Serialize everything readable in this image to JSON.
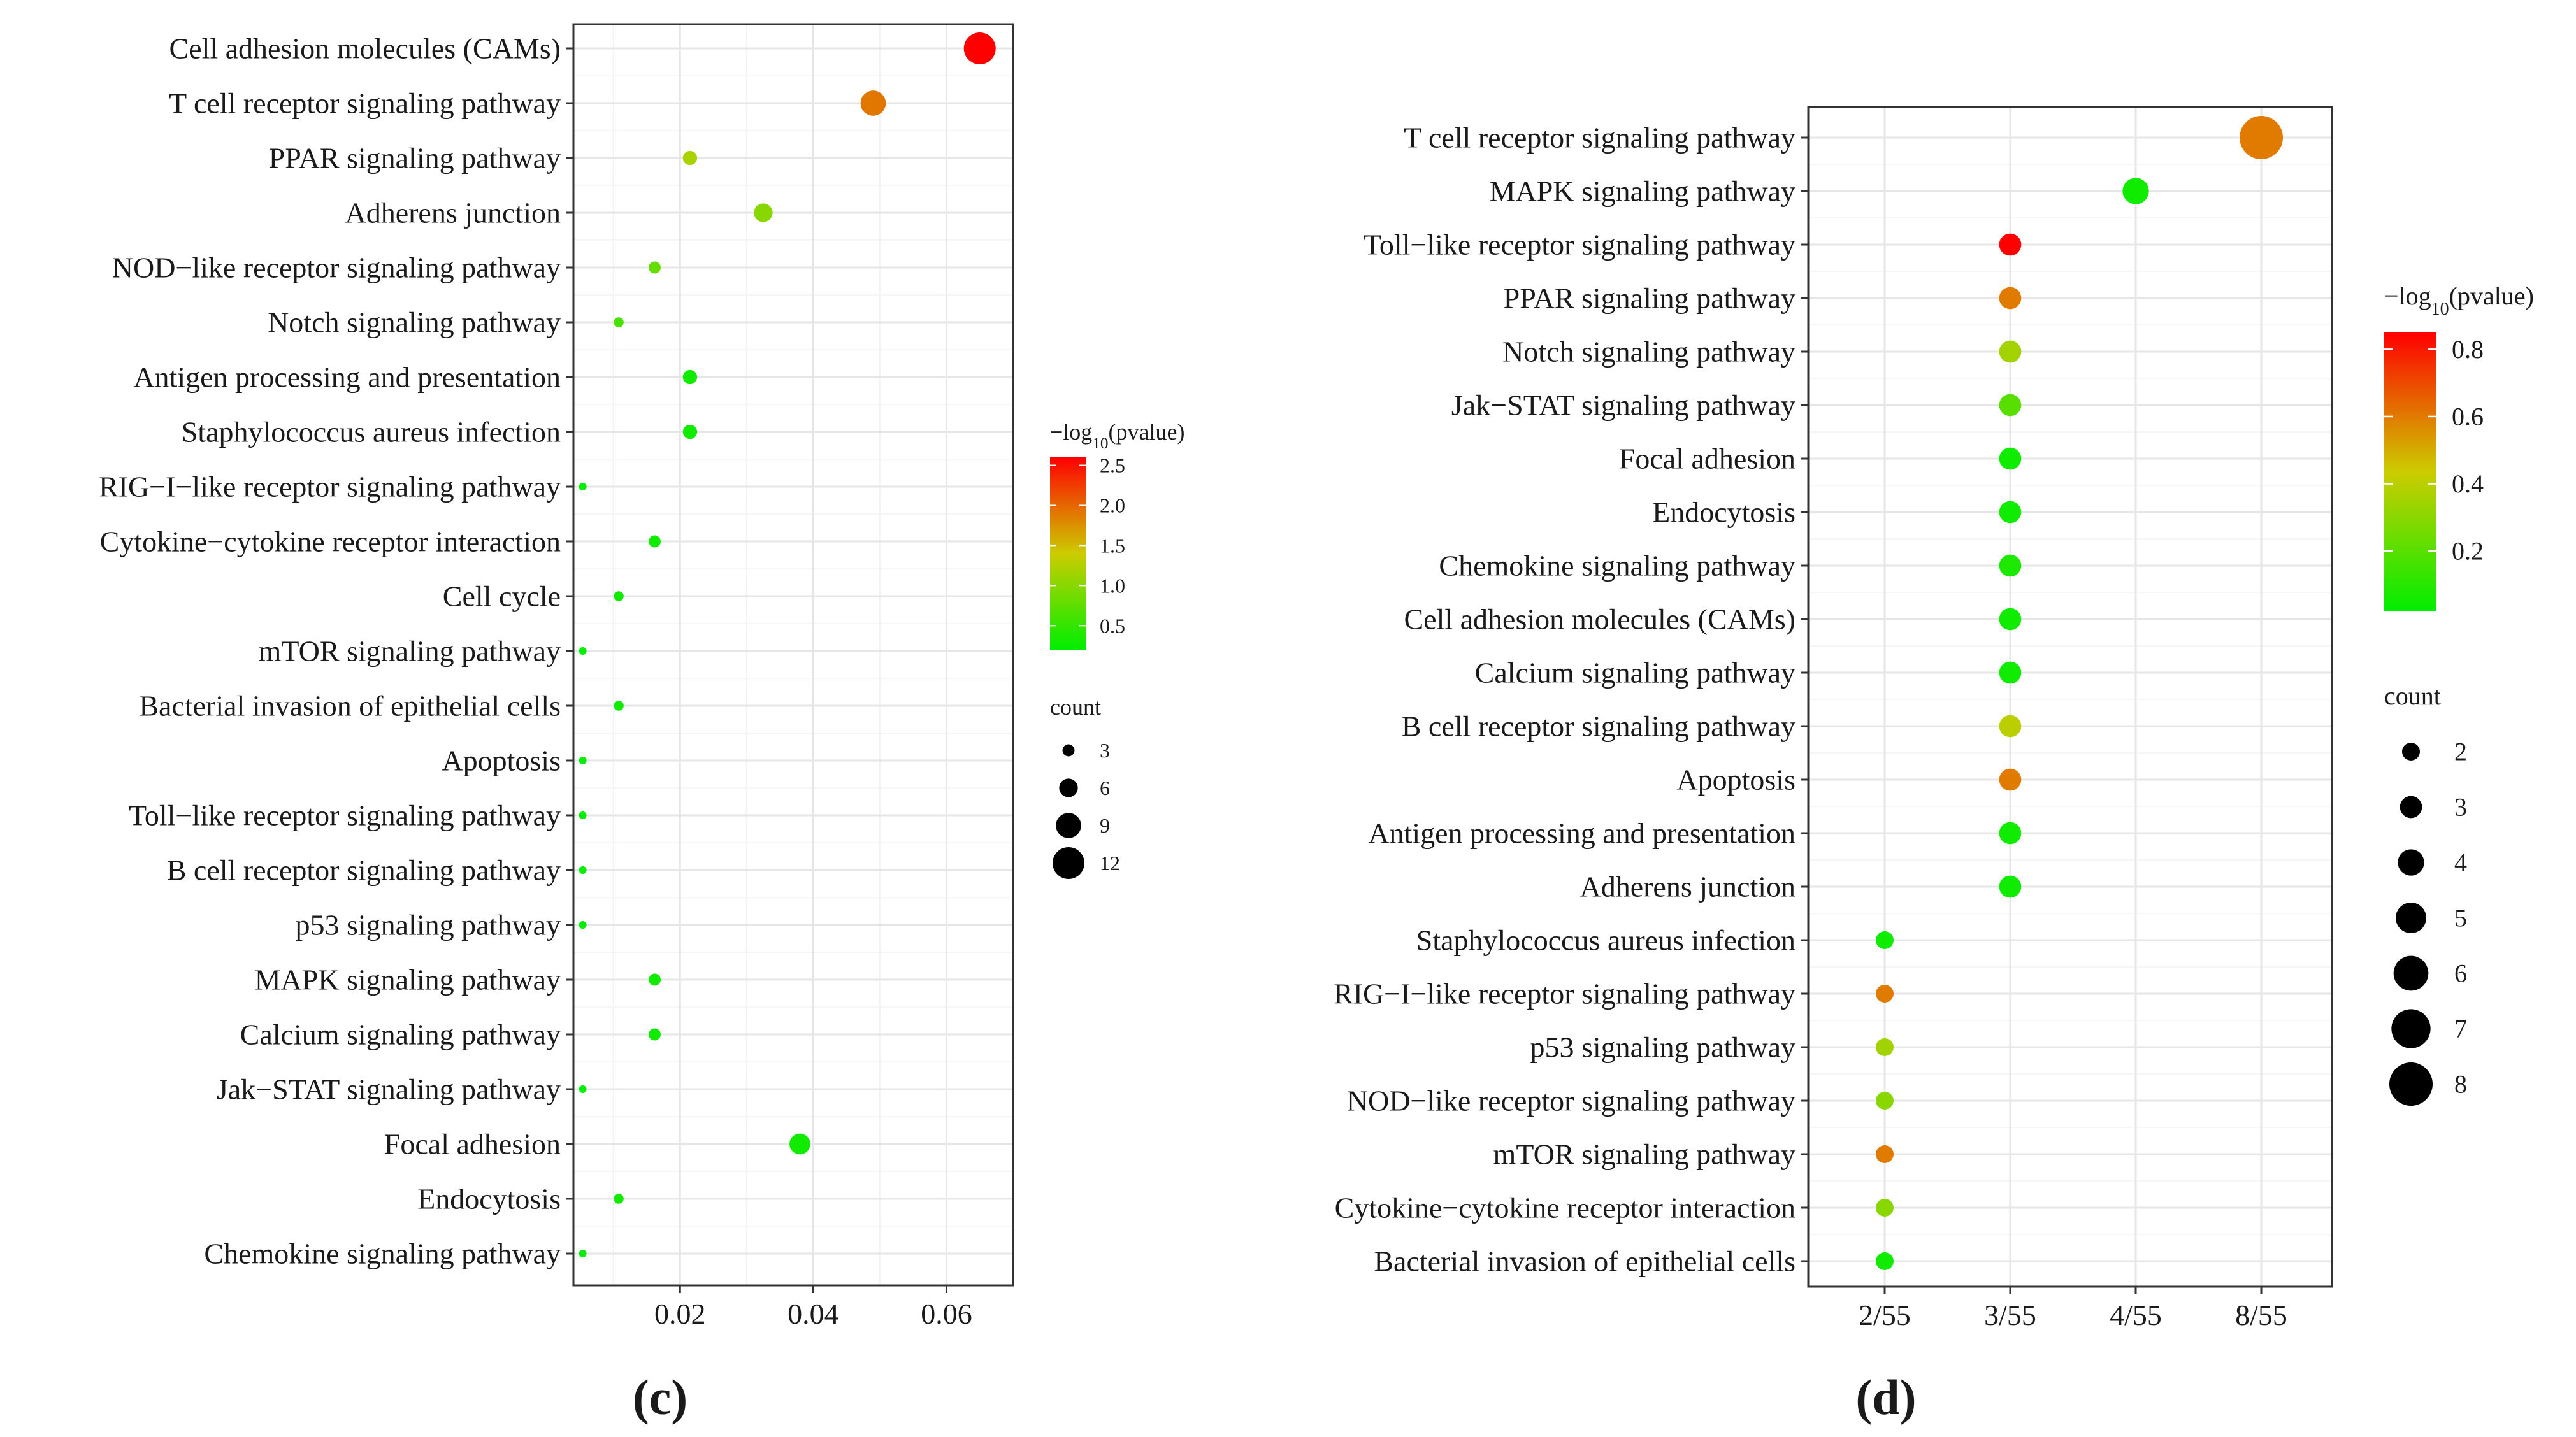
{
  "figure": {
    "panel_labels": [
      "(c)",
      "(d)"
    ]
  },
  "chart_data": [
    {
      "type": "scatter",
      "panel": "(c)",
      "title": "",
      "xlabel": "",
      "ylabel": "",
      "xlim": [
        0.004,
        0.07
      ],
      "xticks": [
        0.02,
        0.04,
        0.06
      ],
      "xtick_labels": [
        "0.02",
        "0.04",
        "0.06"
      ],
      "grid": true,
      "color_legend": {
        "title_prefix": "−log",
        "title_sub": "10",
        "title_suffix": "(pvalue)",
        "range": [
          0.2,
          2.6
        ],
        "ticks": [
          2.5,
          2.0,
          1.5,
          1.0,
          0.5
        ],
        "tick_labels": [
          "2.5",
          "2.0",
          "1.5",
          "1.0",
          "0.5"
        ]
      },
      "size_legend": {
        "title": "count",
        "values": [
          3,
          6,
          9,
          12
        ],
        "labels": [
          "3",
          "6",
          "9",
          "12"
        ],
        "range": [
          1,
          12
        ]
      },
      "colors": {
        "low": "#00ee00",
        "mid": "#cccc00",
        "high": "#ff0000"
      },
      "categories": [
        "Cell adhesion molecules (CAMs)",
        "T cell receptor signaling pathway",
        "PPAR signaling pathway",
        "Adherens junction",
        "NOD−like receptor signaling pathway",
        "Notch signaling pathway",
        "Antigen processing and presentation",
        "Staphylococcus aureus infection",
        "RIG−I−like receptor signaling pathway",
        "Cytokine−cytokine receptor interaction",
        "Cell cycle",
        "mTOR signaling pathway",
        "Bacterial invasion of epithelial cells",
        "Apoptosis",
        "Toll−like receptor signaling pathway",
        "B cell receptor signaling pathway",
        "p53 signaling pathway",
        "MAPK signaling pathway",
        "Calcium signaling pathway",
        "Jak−STAT signaling pathway",
        "Focal adhesion",
        "Endocytosis",
        "Chemokine signaling pathway"
      ],
      "x": [
        0.065,
        0.049,
        0.0215,
        0.0325,
        0.0162,
        0.0108,
        0.0215,
        0.0215,
        0.0054,
        0.0162,
        0.0108,
        0.0054,
        0.0108,
        0.0054,
        0.0054,
        0.0054,
        0.0054,
        0.0162,
        0.0162,
        0.0054,
        0.038,
        0.0108,
        0.0054
      ],
      "count": [
        12,
        9,
        4,
        6,
        3,
        2,
        4,
        4,
        1,
        3,
        2,
        1,
        2,
        1,
        1,
        1,
        1,
        3,
        3,
        1,
        7,
        2,
        1
      ],
      "pvalue": [
        2.6,
        1.9,
        1.2,
        1.0,
        0.8,
        0.6,
        0.3,
        0.3,
        0.2,
        0.3,
        0.3,
        0.2,
        0.3,
        0.2,
        0.2,
        0.2,
        0.2,
        0.3,
        0.3,
        0.2,
        0.3,
        0.3,
        0.2
      ]
    },
    {
      "type": "scatter",
      "panel": "(d)",
      "title": "",
      "xlabel": "",
      "ylabel": "",
      "x_categories": [
        "2/55",
        "3/55",
        "4/55",
        "8/55"
      ],
      "grid": true,
      "color_legend": {
        "title_prefix": "−log",
        "title_sub": "10",
        "title_suffix": "(pvalue)",
        "range": [
          0.02,
          0.85
        ],
        "ticks": [
          0.8,
          0.6,
          0.4,
          0.2
        ],
        "tick_labels": [
          "0.8",
          "0.6",
          "0.4",
          "0.2"
        ]
      },
      "size_legend": {
        "title": "count",
        "values": [
          2,
          3,
          4,
          5,
          6,
          7,
          8
        ],
        "labels": [
          "2",
          "3",
          "4",
          "5",
          "6",
          "7",
          "8"
        ],
        "range": [
          2,
          8
        ]
      },
      "colors": {
        "low": "#00ee00",
        "mid": "#cccc00",
        "high": "#ff0000"
      },
      "categories": [
        "T cell receptor signaling pathway",
        "MAPK signaling pathway",
        "Toll−like receptor signaling pathway",
        "PPAR signaling pathway",
        "Notch signaling pathway",
        "Jak−STAT signaling pathway",
        "Focal adhesion",
        "Endocytosis",
        "Chemokine signaling pathway",
        "Cell adhesion molecules (CAMs)",
        "Calcium signaling pathway",
        "B cell receptor signaling pathway",
        "Apoptosis",
        "Antigen processing and presentation",
        "Adherens junction",
        "Staphylococcus aureus infection",
        "RIG−I−like receptor signaling pathway",
        "p53 signaling pathway",
        "NOD−like receptor signaling pathway",
        "mTOR signaling pathway",
        "Cytokine−cytokine receptor interaction",
        "Bacterial invasion of epithelial cells"
      ],
      "x": [
        "8/55",
        "4/55",
        "3/55",
        "3/55",
        "3/55",
        "3/55",
        "3/55",
        "3/55",
        "3/55",
        "3/55",
        "3/55",
        "3/55",
        "3/55",
        "3/55",
        "3/55",
        "2/55",
        "2/55",
        "2/55",
        "2/55",
        "2/55",
        "2/55",
        "2/55"
      ],
      "count": [
        8,
        4,
        3,
        3,
        3,
        3,
        3,
        3,
        3,
        3,
        3,
        3,
        3,
        3,
        3,
        2,
        2,
        2,
        2,
        2,
        2,
        2
      ],
      "pvalue": [
        0.6,
        0.05,
        0.85,
        0.6,
        0.35,
        0.2,
        0.05,
        0.05,
        0.08,
        0.05,
        0.05,
        0.4,
        0.6,
        0.05,
        0.05,
        0.05,
        0.6,
        0.35,
        0.3,
        0.6,
        0.3,
        0.05
      ]
    }
  ]
}
